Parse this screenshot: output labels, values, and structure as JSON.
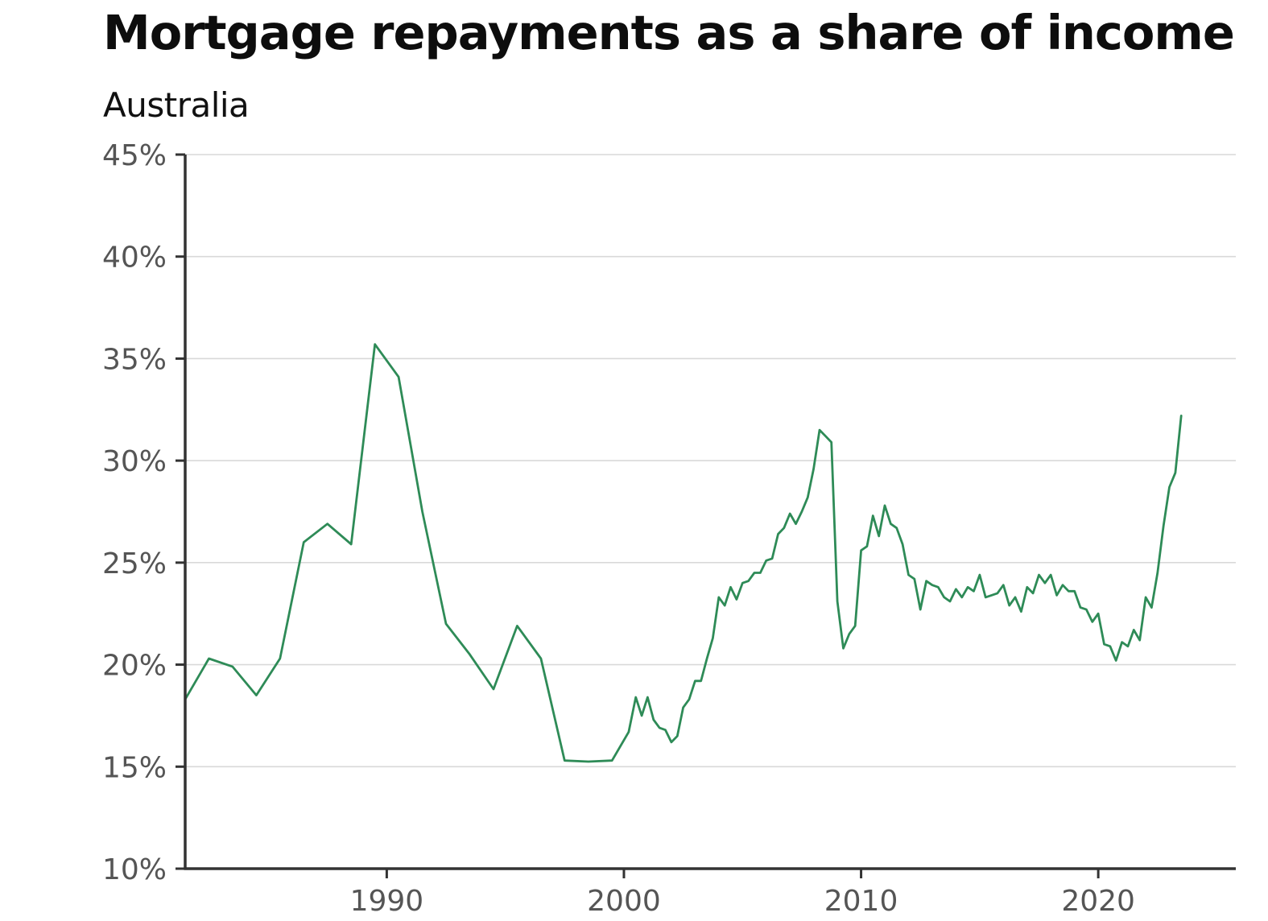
{
  "chart_data": {
    "type": "line",
    "title": "Mortgage repayments as a share of income",
    "subtitle": "Australia",
    "xlabel": "",
    "ylabel": "",
    "xlim": [
      1981.5,
      2025.8
    ],
    "ylim": [
      10,
      45
    ],
    "y_ticks": [
      "10%",
      "15%",
      "20%",
      "25%",
      "30%",
      "35%",
      "40%",
      "45%"
    ],
    "x_ticks": [
      "1990",
      "2000",
      "2010",
      "2020"
    ],
    "grid": "horizontal",
    "legend": "none",
    "line_color": "#2e8b57",
    "series": [
      {
        "x": [
          1981.5,
          1982.5,
          1983.5,
          1984.5,
          1985.5,
          1986.5,
          1987.5,
          1988.5,
          1989.5,
          1990.5,
          1991.5,
          1992.5,
          1993.5,
          1994.5,
          1995.5,
          1996.5,
          1997.5,
          1998.5,
          1999.5,
          2000.2,
          2000.5,
          2000.75,
          2001.0,
          2001.25,
          2001.5,
          2001.75,
          2002.0,
          2002.25,
          2002.5,
          2002.75,
          2003.0,
          2003.25,
          2003.5,
          2003.75,
          2004.0,
          2004.25,
          2004.5,
          2004.75,
          2005.0,
          2005.25,
          2005.5,
          2005.75,
          2006.0,
          2006.25,
          2006.5,
          2006.75,
          2007.0,
          2007.25,
          2007.5,
          2007.75,
          2008.0,
          2008.25,
          2008.5,
          2008.75,
          2009.0,
          2009.25,
          2009.5,
          2009.75,
          2010.0,
          2010.25,
          2010.5,
          2010.75,
          2011.0,
          2011.25,
          2011.5,
          2011.75,
          2012.0,
          2012.25,
          2012.5,
          2012.75,
          2013.0,
          2013.25,
          2013.5,
          2013.75,
          2014.0,
          2014.25,
          2014.5,
          2014.75,
          2015.0,
          2015.25,
          2015.5,
          2015.75,
          2016.0,
          2016.25,
          2016.5,
          2016.75,
          2017.0,
          2017.25,
          2017.5,
          2017.75,
          2018.0,
          2018.25,
          2018.5,
          2018.75,
          2019.0,
          2019.25,
          2019.5,
          2019.75,
          2020.0,
          2020.25,
          2020.5,
          2020.75,
          2021.0,
          2021.25,
          2021.5,
          2021.75,
          2022.0,
          2022.25,
          2022.5,
          2022.75,
          2023.0,
          2023.25,
          2023.5
        ],
        "y": [
          18.3,
          20.3,
          19.9,
          18.5,
          20.3,
          26.0,
          26.9,
          25.9,
          35.7,
          34.1,
          27.5,
          22.0,
          20.5,
          18.8,
          21.9,
          20.3,
          15.3,
          15.25,
          15.3,
          16.7,
          18.4,
          17.5,
          18.4,
          17.3,
          16.9,
          16.8,
          16.2,
          16.5,
          17.9,
          18.3,
          19.2,
          19.2,
          20.3,
          21.3,
          23.3,
          22.9,
          23.8,
          23.2,
          24.0,
          24.1,
          24.5,
          24.5,
          25.1,
          25.2,
          26.4,
          26.7,
          27.4,
          26.9,
          27.5,
          28.2,
          29.6,
          31.5,
          31.2,
          30.9,
          23.1,
          20.8,
          21.5,
          21.9,
          25.6,
          25.8,
          27.3,
          26.3,
          27.8,
          26.9,
          26.7,
          25.9,
          24.4,
          24.2,
          22.7,
          24.1,
          23.9,
          23.8,
          23.3,
          23.1,
          23.7,
          23.3,
          23.8,
          23.6,
          24.4,
          23.3,
          23.4,
          23.5,
          23.9,
          22.9,
          23.3,
          22.6,
          23.8,
          23.5,
          24.4,
          24.0,
          24.4,
          23.4,
          23.9,
          23.6,
          23.6,
          22.8,
          22.7,
          22.1,
          22.5,
          21.0,
          20.9,
          20.2,
          21.1,
          20.9,
          21.7,
          21.2,
          23.3,
          22.8,
          24.5,
          26.8,
          28.7,
          29.4,
          32.2
        ]
      }
    ]
  }
}
